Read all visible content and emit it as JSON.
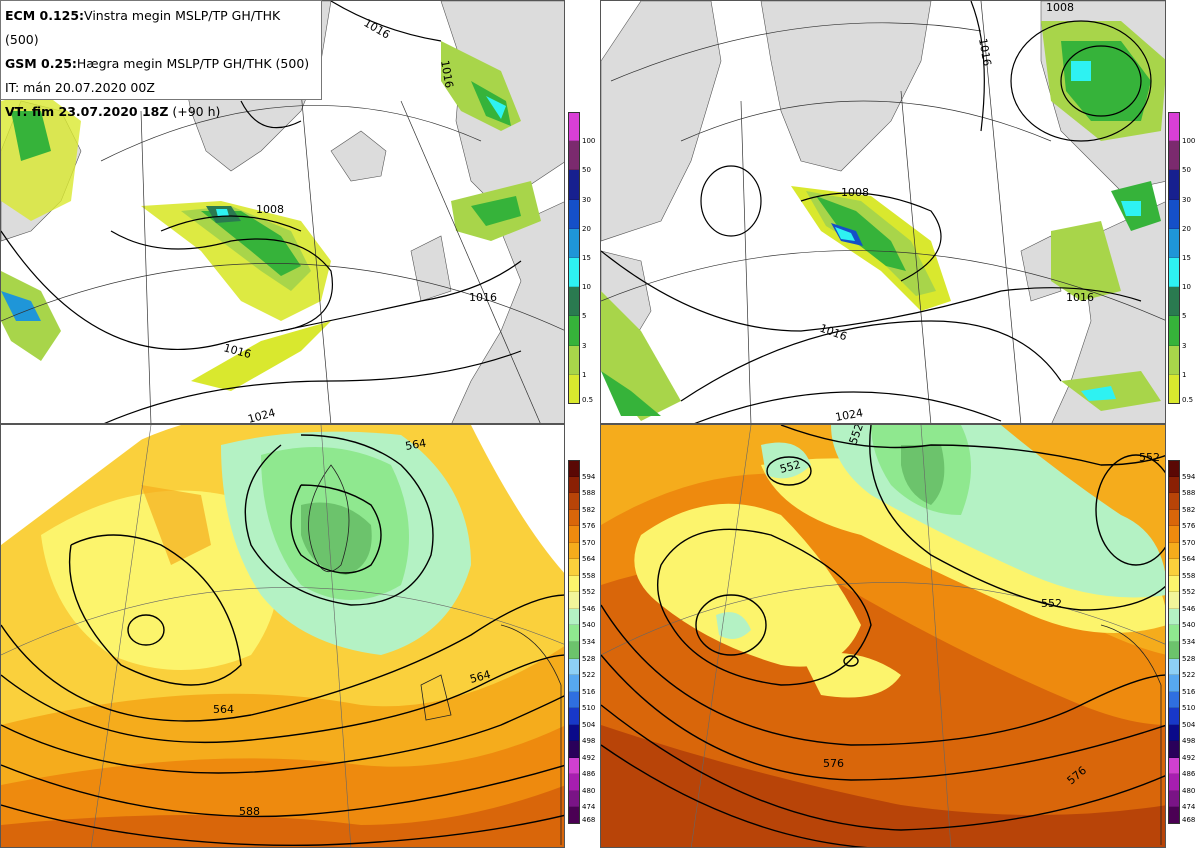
{
  "header": {
    "line1_bold": "ECM 0.125:",
    "line1_text": "Vinstra megin MSLP/TP GH/THK (500)",
    "line2_bold": "GSM 0.25:",
    "line2_text": "Hægra megin MSLP/TP GH/THK (500)",
    "line3_text": "IT: mán 20.07.2020 00Z",
    "line4_bold": "VT: fim 23.07.2020 18Z",
    "line4_text": " (+90 h)"
  },
  "precip_scale": {
    "levels": [
      "0.5",
      "1",
      "3",
      "5",
      "10",
      "15",
      "20",
      "30",
      "50",
      "100"
    ],
    "colors": [
      "#d9e82e",
      "#a8d54a",
      "#36b33a",
      "#2a7a50",
      "#2ef2f2",
      "#1f96d8",
      "#1550c8",
      "#17208f",
      "#7b2a6e",
      "#d93fd6"
    ]
  },
  "thickness_scale": {
    "levels": [
      "468",
      "474",
      "480",
      "486",
      "492",
      "498",
      "504",
      "510",
      "516",
      "522",
      "528",
      "534",
      "540",
      "546",
      "552",
      "558",
      "564",
      "570",
      "576",
      "582",
      "588",
      "594"
    ],
    "colors": [
      "#4b0054",
      "#7a1486",
      "#a71eb0",
      "#d040d0",
      "#2a005a",
      "#0a0a8a",
      "#1838c8",
      "#2f6fe0",
      "#57a8f0",
      "#8ed0f5",
      "#6cc36c",
      "#8fe88f",
      "#b4f2c4",
      "#f2f59a",
      "#fcf46c",
      "#fad03c",
      "#f5ac1c",
      "#ee8a0e",
      "#d9660a",
      "#b84408",
      "#8a2004",
      "#5a0804"
    ]
  },
  "isobar_labels_tl": [
    "1016",
    "1008",
    "1016",
    "1016",
    "1016",
    "1024"
  ],
  "isobar_labels_tr": [
    "1008",
    "1016",
    "1008",
    "1016",
    "1016",
    "1024"
  ],
  "height_labels_bl": [
    "564",
    "564",
    "564",
    "588"
  ],
  "height_labels_br": [
    "552",
    "552",
    "552",
    "552",
    "576",
    "576"
  ]
}
